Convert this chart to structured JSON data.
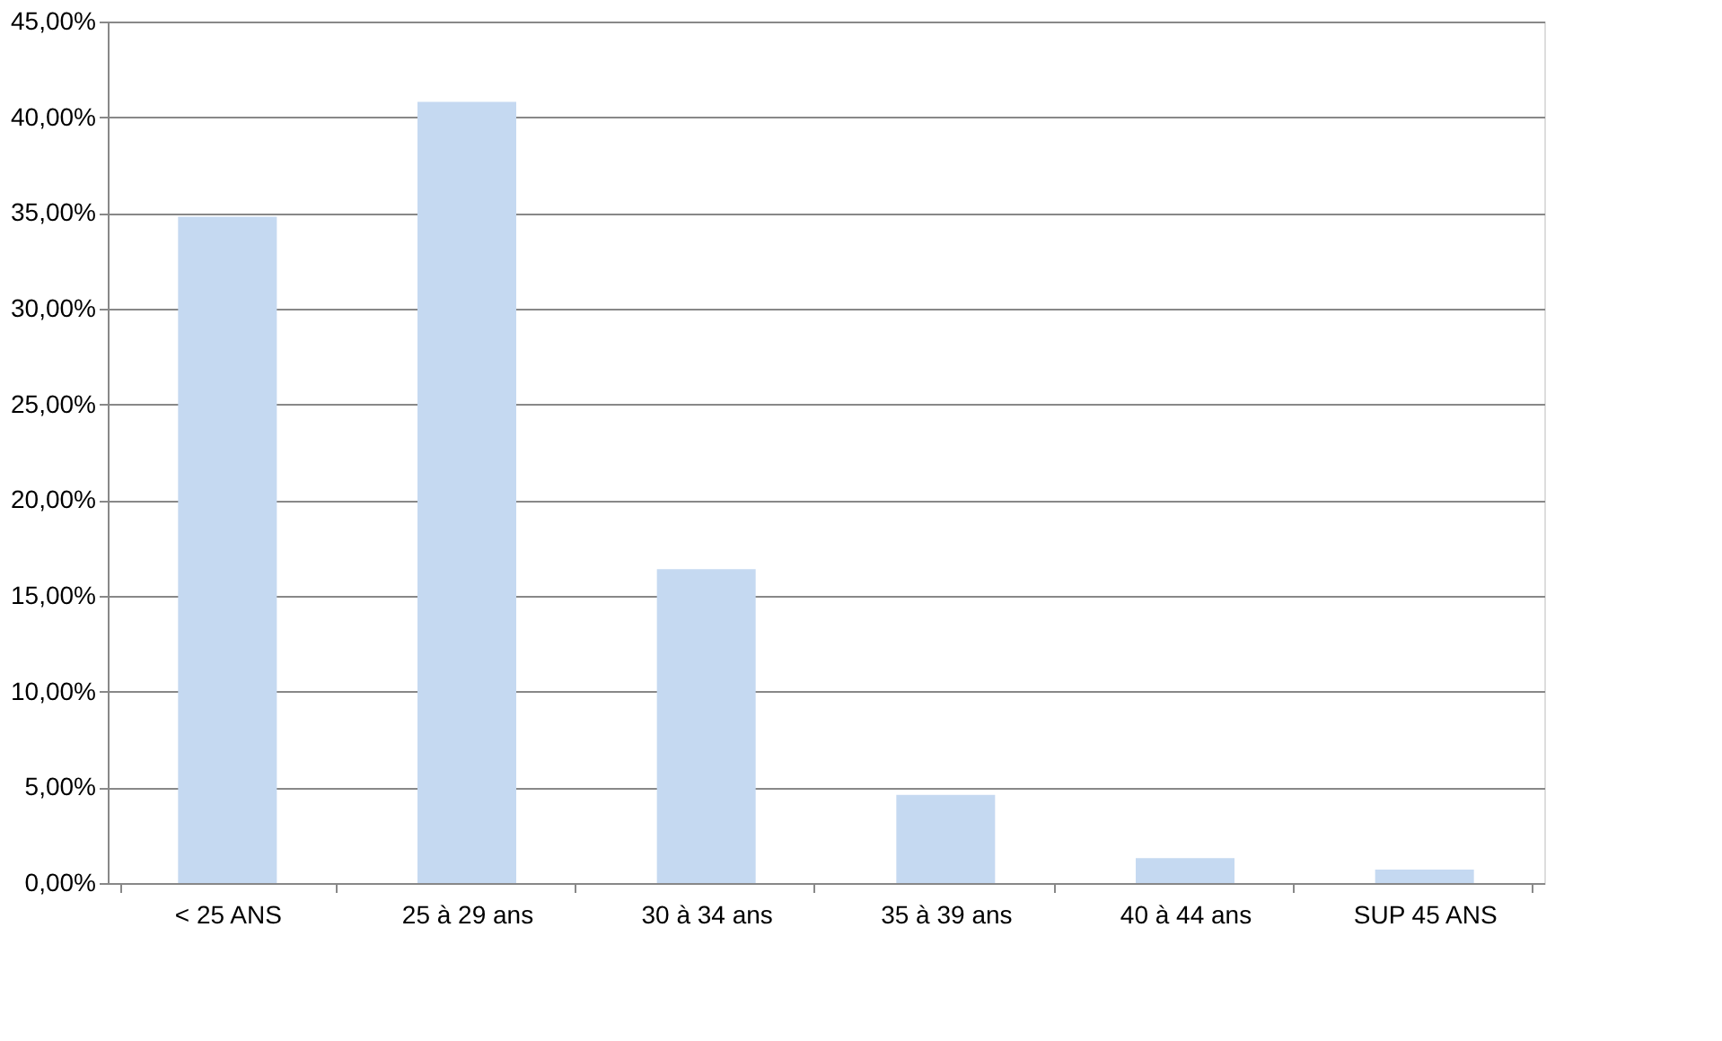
{
  "chart_data": {
    "type": "bar",
    "categories": [
      "< 25 ANS",
      "25 à 29 ans",
      "30 à 34 ans",
      "35 à 39 ans",
      "40 à 44 ans",
      "SUP 45 ANS"
    ],
    "values": [
      34.8,
      40.8,
      16.4,
      4.6,
      1.3,
      0.7
    ],
    "color": "#c5d9f1",
    "ylim": [
      0,
      45
    ],
    "yticks": [
      {
        "value": 0,
        "label": "0,00%"
      },
      {
        "value": 5,
        "label": "5,00%"
      },
      {
        "value": 10,
        "label": "10,00%"
      },
      {
        "value": 15,
        "label": "15,00%"
      },
      {
        "value": 20,
        "label": "20,00%"
      },
      {
        "value": 25,
        "label": "25,00%"
      },
      {
        "value": 30,
        "label": "30,00%"
      },
      {
        "value": 35,
        "label": "35,00%"
      },
      {
        "value": 40,
        "label": "40,00%"
      },
      {
        "value": 45,
        "label": "45,00%"
      }
    ],
    "grid": "y"
  }
}
